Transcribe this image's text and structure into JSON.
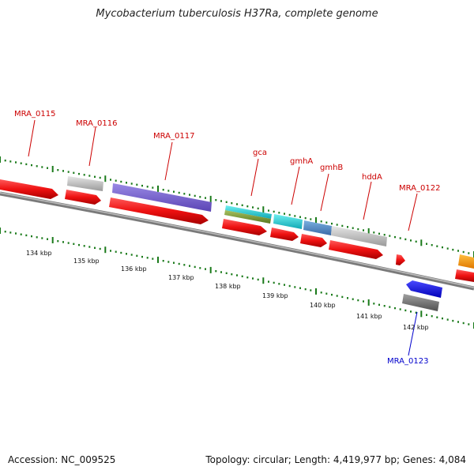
{
  "title": "Mycobacterium tuberculosis H37Ra, complete genome",
  "footer": {
    "accession": "Accession: NC_009525",
    "info": "Topology: circular; Length: 4,419,977 bp; Genes: 4,084"
  },
  "colors": {
    "forward_label": "#cc0000",
    "reverse_label": "#0000cc",
    "tick": "#1a7a1a",
    "backbone": "#8a8a8a",
    "cds_red": "#ee1111"
  },
  "gene_labels": [
    {
      "text": "MRA_0115",
      "strand": "forward"
    },
    {
      "text": "MRA_0116",
      "strand": "forward"
    },
    {
      "text": "MRA_0117",
      "strand": "forward"
    },
    {
      "text": "gca",
      "strand": "forward"
    },
    {
      "text": "gmhA",
      "strand": "forward"
    },
    {
      "text": "gmhB",
      "strand": "forward"
    },
    {
      "text": "hddA",
      "strand": "forward"
    },
    {
      "text": "MRA_0122",
      "strand": "forward"
    },
    {
      "text": "MRA_0123",
      "strand": "reverse"
    }
  ],
  "kbp_labels": [
    "134 kbp",
    "135 kbp",
    "136 kbp",
    "137 kbp",
    "138 kbp",
    "139 kbp",
    "140 kbp",
    "141 kbp",
    "142 kbp"
  ]
}
